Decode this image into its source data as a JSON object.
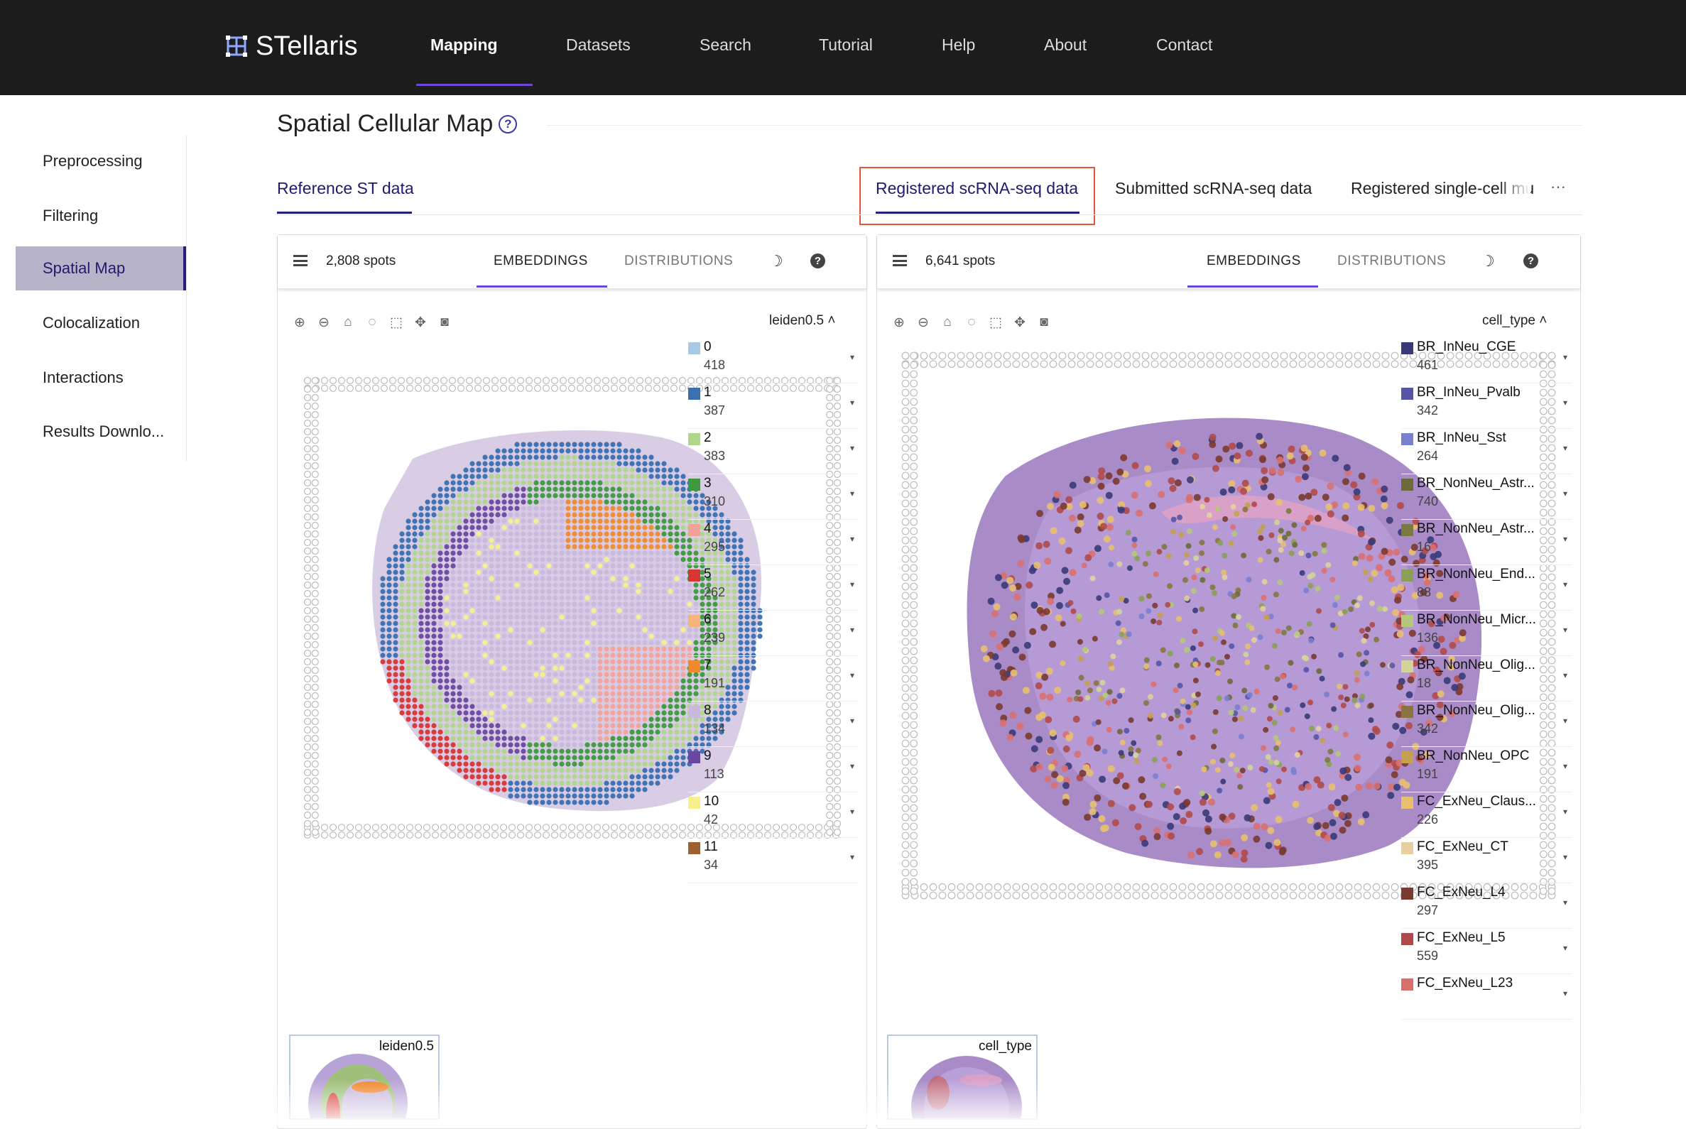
{
  "app": {
    "name": "STellaris",
    "nav": [
      "Mapping",
      "Datasets",
      "Search",
      "Tutorial",
      "Help",
      "About",
      "Contact"
    ],
    "active_nav": "Mapping"
  },
  "sidebar": {
    "items": [
      {
        "label": "Preprocessing"
      },
      {
        "label": "Filtering"
      },
      {
        "label": "Spatial Map",
        "active": true
      },
      {
        "label": "Colocalization"
      },
      {
        "label": "Interactions"
      },
      {
        "label": "Results Downlo..."
      }
    ]
  },
  "page": {
    "title": "Spatial Cellular Map",
    "help": "?"
  },
  "tabs": {
    "reference": "Reference ST data",
    "registered": "Registered scRNA-seq data",
    "submitted": "Submitted scRNA-seq data",
    "registered_single": "Registered single-cell mu",
    "more": "···"
  },
  "left_panel": {
    "spots": "2,808 spots",
    "embeddings": "EMBEDDINGS",
    "distributions": "DISTRIBUTIONS",
    "moon": "☽",
    "help": "?",
    "color_by": "leiden0.5 ˄",
    "thumb_label": "leiden0.5",
    "legend": [
      {
        "label": "0",
        "count": "418",
        "color": "#a8c8e3"
      },
      {
        "label": "1",
        "count": "387",
        "color": "#3a6fb0"
      },
      {
        "label": "2",
        "count": "383",
        "color": "#b0d68a"
      },
      {
        "label": "3",
        "count": "310",
        "color": "#3c9a3c"
      },
      {
        "label": "4",
        "count": "295",
        "color": "#f2a29a"
      },
      {
        "label": "5",
        "count": "262",
        "color": "#d83535"
      },
      {
        "label": "6",
        "count": "239",
        "color": "#f5b57a"
      },
      {
        "label": "7",
        "count": "191",
        "color": "#f08a2e"
      },
      {
        "label": "8",
        "count": "134",
        "color": "#c9b8dd"
      },
      {
        "label": "9",
        "count": "113",
        "color": "#6b46a0"
      },
      {
        "label": "10",
        "count": "42",
        "color": "#f7f08a"
      },
      {
        "label": "11",
        "count": "34",
        "color": "#a0602e"
      }
    ]
  },
  "right_panel": {
    "spots": "6,641 spots",
    "embeddings": "EMBEDDINGS",
    "distributions": "DISTRIBUTIONS",
    "moon": "☽",
    "help": "?",
    "color_by": "cell_type ˄",
    "thumb_label": "cell_type",
    "legend": [
      {
        "label": "BR_InNeu_CGE",
        "count": "461",
        "color": "#3a3a7a"
      },
      {
        "label": "BR_InNeu_Pvalb",
        "count": "342",
        "color": "#5555a8"
      },
      {
        "label": "BR_InNeu_Sst",
        "count": "264",
        "color": "#7a80d0"
      },
      {
        "label": "BR_NonNeu_Astr...",
        "count": "740",
        "color": "#6b6b3a"
      },
      {
        "label": "BR_NonNeu_Astr...",
        "count": "16",
        "color": "#7a7a40"
      },
      {
        "label": "BR_NonNeu_End...",
        "count": "88",
        "color": "#8aa055"
      },
      {
        "label": "BR_NonNeu_Micr...",
        "count": "136",
        "color": "#b5c87a"
      },
      {
        "label": "BR_NonNeu_Olig...",
        "count": "18",
        "color": "#d4d49a"
      },
      {
        "label": "BR_NonNeu_Olig...",
        "count": "342",
        "color": "#8a7540"
      },
      {
        "label": "BR_NonNeu_OPC",
        "count": "191",
        "color": "#c4a050"
      },
      {
        "label": "FC_ExNeu_Claus...",
        "count": "226",
        "color": "#e8c070"
      },
      {
        "label": "FC_ExNeu_CT",
        "count": "395",
        "color": "#e6d0a0"
      },
      {
        "label": "FC_ExNeu_L4",
        "count": "297",
        "color": "#7a3a30"
      },
      {
        "label": "FC_ExNeu_L5",
        "count": "559",
        "color": "#b04a4a"
      },
      {
        "label": "FC_ExNeu_L23",
        "count": "",
        "color": "#d87070"
      }
    ]
  }
}
